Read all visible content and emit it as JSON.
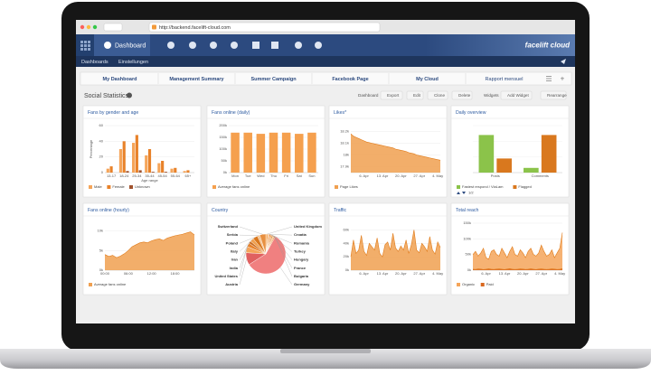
{
  "browser": {
    "url": "http://backend.facelift-cloud.com"
  },
  "nav": {
    "title": "Dashboard",
    "logo": "facelift cloud",
    "links": [
      "Dashboards",
      "Einstellungen"
    ]
  },
  "tabs": [
    "My Dashboard",
    "Management Summary",
    "Summer Campaign",
    "Facebook Page",
    "My Cloud",
    "Rapport mensuel"
  ],
  "section": {
    "title": "Social Statistics",
    "buttons": [
      "Dashboard",
      "Export",
      "Edit",
      "Clone",
      "Delete",
      "Widgets",
      "Add Widget",
      "Rearrange"
    ]
  },
  "chart_data": [
    {
      "type": "bar",
      "title": "Fans by gender and age",
      "ylabel": "Percentage",
      "xlabel": "Age range",
      "categories": [
        "13-17",
        "18-24",
        "25-34",
        "35-44",
        "45-54",
        "55-64",
        "65+"
      ],
      "series": [
        {
          "name": "Male",
          "color": "#f5a55a",
          "values": [
            5,
            30,
            38,
            22,
            12,
            5,
            2
          ]
        },
        {
          "name": "Female",
          "color": "#e8822a",
          "values": [
            8,
            40,
            48,
            30,
            15,
            6,
            3
          ]
        },
        {
          "name": "Unknown",
          "color": "#a0522d",
          "values": [
            0,
            2,
            3,
            1,
            1,
            0,
            0
          ]
        }
      ],
      "ylim": [
        0,
        60
      ],
      "yticks": [
        0,
        20,
        40,
        60
      ],
      "grid": true
    },
    {
      "type": "bar",
      "title": "Fans online (daily)",
      "categories": [
        "Mon",
        "Tue",
        "Wed",
        "Thu",
        "Fri",
        "Sat",
        "Sun"
      ],
      "series": [
        {
          "name": "Average fans online",
          "color": "#f5a04e",
          "values": [
            170000,
            170000,
            165000,
            170000,
            170000,
            165000,
            170000
          ]
        }
      ],
      "ylim": [
        0,
        200000
      ],
      "yticks": [
        {
          "value": 0,
          "label": "0k"
        },
        {
          "value": 50000,
          "label": "50k"
        },
        {
          "value": 100000,
          "label": "100k"
        },
        {
          "value": 150000,
          "label": "150k"
        },
        {
          "value": 200000,
          "label": "200k"
        }
      ],
      "grid": true
    },
    {
      "type": "area",
      "title": "Likes*",
      "categories": [
        null,
        null,
        null,
        null,
        null,
        "6. Apr",
        null,
        null,
        null,
        null,
        null,
        null,
        "13. Apr",
        null,
        null,
        null,
        null,
        null,
        null,
        "20. Apr",
        null,
        null,
        null,
        null,
        null,
        null,
        "27. Apr",
        null,
        null,
        null,
        null,
        null,
        null,
        "4. May",
        null
      ],
      "series": [
        {
          "name": "Page Likes",
          "color": "#f0a050",
          "values": [
            18180,
            18160,
            18150,
            18140,
            18130,
            18120,
            18110,
            18105,
            18100,
            18095,
            18090,
            18085,
            18080,
            18075,
            18070,
            18065,
            18060,
            18050,
            18045,
            18040,
            18035,
            18030,
            18020,
            18015,
            18010,
            18000,
            17995,
            17990,
            17985,
            17980,
            17975,
            17970,
            17965,
            17960,
            17955
          ]
        }
      ],
      "ylim": [
        17850,
        18250
      ],
      "yticks": [
        {
          "value": 17900,
          "label": "17.9k"
        },
        {
          "value": 18000,
          "label": "18k"
        },
        {
          "value": 18100,
          "label": "18.1k"
        },
        {
          "value": 18200,
          "label": "18.2k"
        }
      ],
      "grid": true
    },
    {
      "type": "bar",
      "title": "Daily overview",
      "pager": "1/2",
      "categories": [
        "Posts",
        "Comments"
      ],
      "series": [
        {
          "name": "Fastest respond / ViaLam",
          "color": "#8bc34a",
          "values": [
            8,
            1
          ]
        },
        {
          "name": "Flagged",
          "color": "#d9781e",
          "values": [
            3,
            8
          ]
        }
      ],
      "ylim": [
        0,
        10
      ],
      "grid": true
    },
    {
      "type": "area",
      "title": "Fans online (hourly)",
      "categories": [
        "00:00",
        null,
        null,
        null,
        null,
        null,
        "06:00",
        null,
        null,
        null,
        null,
        null,
        "12:00",
        null,
        null,
        null,
        null,
        null,
        "18:00",
        null,
        null,
        null,
        null,
        null
      ],
      "series": [
        {
          "name": "Average fans online",
          "color": "#f0a050",
          "values": [
            4000,
            3500,
            3800,
            3200,
            3600,
            4200,
            5000,
            6000,
            6500,
            7000,
            7200,
            7000,
            7500,
            7800,
            8000,
            7600,
            8200,
            8500,
            8800,
            9000,
            9200,
            9500,
            9800,
            9000
          ]
        }
      ],
      "ylim": [
        0,
        12000
      ],
      "yticks": [
        {
          "value": 0,
          "label": "0k"
        },
        {
          "value": 5000,
          "label": "5k"
        },
        {
          "value": 10000,
          "label": "10k"
        }
      ],
      "grid": true
    },
    {
      "type": "pie",
      "title": "Country",
      "categories": [
        "United Kingdom",
        "Croatia",
        "Romania",
        "Turkey",
        "Hungary",
        "France",
        "Bulgaria",
        "Germany",
        "Austria",
        "United States",
        "India",
        "Iran",
        "Italy",
        "Poland",
        "Serbia",
        "Switzerland"
      ],
      "values": [
        2,
        1,
        1,
        1,
        1,
        1,
        1,
        58,
        10,
        5,
        3,
        2,
        3,
        4,
        2,
        5
      ],
      "colors": [
        "#f6b26b",
        "#f4a460",
        "#e8822a",
        "#f0a050",
        "#d9781e",
        "#f5b87a",
        "#e89040",
        "#f08080",
        "#e06060",
        "#f5a55a",
        "#e8822a",
        "#c86a20",
        "#f0a050",
        "#d9781e",
        "#f6c08a",
        "#e89040"
      ]
    },
    {
      "type": "area",
      "title": "Traffic",
      "color": "#f0a050",
      "categories": [
        null,
        null,
        null,
        null,
        null,
        "6. Apr",
        null,
        null,
        null,
        null,
        null,
        null,
        "13. Apr",
        null,
        null,
        null,
        null,
        null,
        null,
        "20. Apr",
        null,
        null,
        null,
        null,
        null,
        null,
        "27. Apr",
        null,
        null,
        null,
        null,
        null,
        null,
        "4. May",
        null
      ],
      "values": [
        20000,
        45000,
        25000,
        30000,
        52000,
        28000,
        22000,
        40000,
        35000,
        30000,
        48000,
        25000,
        20000,
        38000,
        42000,
        30000,
        55000,
        33000,
        28000,
        36000,
        30000,
        45000,
        25000,
        38000,
        60000,
        30000,
        26000,
        40000,
        35000,
        28000,
        50000,
        30000,
        24000,
        42000,
        34000
      ],
      "ylim": [
        0,
        70000
      ],
      "yticks": [
        {
          "value": 0,
          "label": "0k"
        },
        {
          "value": 20000,
          "label": "20k"
        },
        {
          "value": 40000,
          "label": "40k"
        },
        {
          "value": 60000,
          "label": "60k"
        }
      ],
      "grid": true
    },
    {
      "type": "area",
      "title": "Total reach",
      "categories": [
        null,
        null,
        null,
        null,
        null,
        "6. Apr",
        null,
        null,
        null,
        null,
        null,
        null,
        "13. Apr",
        null,
        null,
        null,
        null,
        null,
        null,
        "20. Apr",
        null,
        null,
        null,
        null,
        null,
        null,
        "27. Apr",
        null,
        null,
        null,
        null,
        null,
        null,
        "4. May",
        null
      ],
      "series": [
        {
          "name": "Organic",
          "color": "#f5a55a",
          "values": [
            50000,
            60000,
            45000,
            55000,
            70000,
            40000,
            35000,
            60000,
            65000,
            50000,
            45000,
            70000,
            55000,
            40000,
            60000,
            75000,
            50000,
            45000,
            65000,
            55000,
            40000,
            60000,
            70000,
            50000,
            45000,
            55000,
            80000,
            60000,
            45000,
            50000,
            65000,
            40000,
            55000,
            70000,
            120000
          ]
        },
        {
          "name": "Paid",
          "color": "#d9681e",
          "values": [
            3000,
            2500,
            4000,
            3500,
            2000,
            3000,
            4500,
            3000,
            2500,
            3500,
            4000,
            3000,
            2000,
            3500,
            5000,
            3000,
            2500,
            3000,
            4000,
            3500,
            2500,
            3000,
            4500,
            3000,
            2000,
            3500,
            4000,
            3000,
            2500,
            3000,
            4000,
            3500,
            2500,
            3000,
            5000
          ]
        }
      ],
      "ylim": [
        0,
        150000
      ],
      "yticks": [
        {
          "value": 0,
          "label": "0k"
        },
        {
          "value": 50000,
          "label": "50k"
        },
        {
          "value": 100000,
          "label": "100k"
        },
        {
          "value": 150000,
          "label": "150k"
        }
      ],
      "grid": true
    }
  ]
}
